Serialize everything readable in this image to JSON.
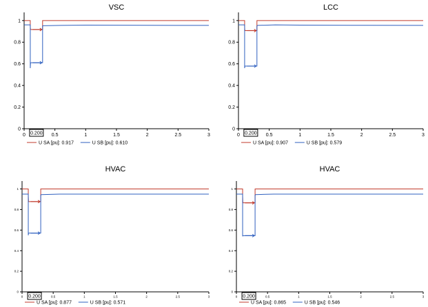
{
  "chart_data": [
    {
      "type": "line",
      "title": "VSC",
      "xlim": [
        0,
        3
      ],
      "ylim": [
        0,
        1.05
      ],
      "xticks": [
        "0",
        "0.5",
        "1",
        "1.5",
        "2",
        "2.5",
        "3"
      ],
      "yticks": [
        "0",
        "0.2",
        "0.4",
        "0.6",
        "0.8",
        "1"
      ],
      "cursor_label": "0.200",
      "series": [
        {
          "name": "U SA [pu]: 0.917",
          "color": "#c0392b",
          "x": [
            0,
            0.1,
            0.1,
            0.104,
            0.3,
            0.3,
            3.0
          ],
          "y": [
            1.0,
            1.0,
            0.94,
            0.917,
            0.917,
            1.0,
            1.0
          ]
        },
        {
          "name": "U SB [pu]: 0.610",
          "color": "#2e5fbf",
          "x": [
            0,
            0.1,
            0.1,
            0.104,
            0.3,
            0.3,
            0.31,
            0.6,
            1.0,
            2.0,
            3.0
          ],
          "y": [
            0.96,
            0.96,
            0.56,
            0.61,
            0.61,
            0.95,
            0.952,
            0.955,
            0.958,
            0.956,
            0.955
          ]
        }
      ]
    },
    {
      "type": "line",
      "title": "LCC",
      "xlim": [
        0,
        3
      ],
      "ylim": [
        0,
        1.05
      ],
      "xticks": [
        "0",
        "0.5",
        "1",
        "1.5",
        "2",
        "2.5",
        "3"
      ],
      "yticks": [
        "0",
        "0.2",
        "0.4",
        "0.6",
        "0.8",
        "1"
      ],
      "cursor_label": "0.200",
      "series": [
        {
          "name": "U SA [pu]: 0.907",
          "color": "#c0392b",
          "x": [
            0,
            0.1,
            0.1,
            0.104,
            0.3,
            0.3,
            3.0
          ],
          "y": [
            1.0,
            1.0,
            0.94,
            0.907,
            0.907,
            1.0,
            1.0
          ]
        },
        {
          "name": "U SB [pu]: 0.579",
          "color": "#2e5fbf",
          "x": [
            0,
            0.1,
            0.1,
            0.104,
            0.3,
            0.3,
            0.31,
            0.6,
            1.0,
            2.0,
            3.0
          ],
          "y": [
            0.96,
            0.96,
            0.56,
            0.579,
            0.579,
            0.95,
            0.955,
            0.96,
            0.958,
            0.956,
            0.955
          ]
        }
      ]
    },
    {
      "type": "line",
      "title": "HVAC",
      "xlim": [
        0,
        3
      ],
      "ylim": [
        0,
        1.05
      ],
      "xticks": [
        "0",
        "0.5",
        "1",
        "1.5",
        "2",
        "2.5",
        "3"
      ],
      "yticks": [
        "0",
        "0.2",
        "0.4",
        "0.6",
        "0.8",
        "1"
      ],
      "cursor_label": "0.200",
      "series": [
        {
          "name": "U SA [pu]: 0.877",
          "color": "#c0392b",
          "x": [
            0,
            0.1,
            0.1,
            0.104,
            0.3,
            0.3,
            3.0
          ],
          "y": [
            1.0,
            1.0,
            0.93,
            0.877,
            0.877,
            1.0,
            1.0
          ]
        },
        {
          "name": "U SB [pu]: 0.571",
          "color": "#2e5fbf",
          "x": [
            0,
            0.1,
            0.1,
            0.104,
            0.3,
            0.3,
            0.31,
            0.6,
            1.0,
            2.0,
            3.0
          ],
          "y": [
            0.95,
            0.95,
            0.55,
            0.571,
            0.571,
            0.94,
            0.945,
            0.95,
            0.95,
            0.95,
            0.95
          ]
        }
      ]
    },
    {
      "type": "line",
      "title": "HVAC",
      "xlim": [
        0,
        3
      ],
      "ylim": [
        0,
        1.05
      ],
      "xticks": [
        "0",
        "0.5",
        "1",
        "1.5",
        "2",
        "2.5",
        "3"
      ],
      "yticks": [
        "0",
        "0.2",
        "0.4",
        "0.6",
        "0.8",
        "1"
      ],
      "cursor_label": "0.200",
      "series": [
        {
          "name": "U SA [pu]: 0.865",
          "color": "#c0392b",
          "x": [
            0,
            0.1,
            0.1,
            0.104,
            0.3,
            0.3,
            3.0
          ],
          "y": [
            1.0,
            1.0,
            0.93,
            0.865,
            0.865,
            1.0,
            1.0
          ]
        },
        {
          "name": "U SB [pu]: 0.546",
          "color": "#2e5fbf",
          "x": [
            0,
            0.1,
            0.1,
            0.104,
            0.3,
            0.3,
            0.31,
            0.6,
            1.0,
            2.0,
            3.0
          ],
          "y": [
            0.95,
            0.95,
            0.54,
            0.546,
            0.546,
            0.94,
            0.945,
            0.95,
            0.95,
            0.95,
            0.95
          ]
        }
      ]
    }
  ]
}
